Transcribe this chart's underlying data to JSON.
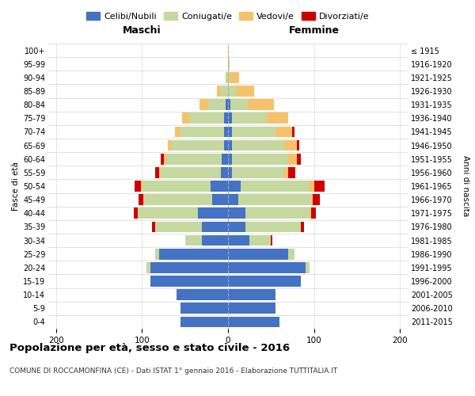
{
  "age_groups": [
    "0-4",
    "5-9",
    "10-14",
    "15-19",
    "20-24",
    "25-29",
    "30-34",
    "35-39",
    "40-44",
    "45-49",
    "50-54",
    "55-59",
    "60-64",
    "65-69",
    "70-74",
    "75-79",
    "80-84",
    "85-89",
    "90-94",
    "95-99",
    "100+"
  ],
  "birth_years": [
    "2011-2015",
    "2006-2010",
    "2001-2005",
    "1996-2000",
    "1991-1995",
    "1986-1990",
    "1981-1985",
    "1976-1980",
    "1971-1975",
    "1966-1970",
    "1961-1965",
    "1956-1960",
    "1951-1955",
    "1946-1950",
    "1941-1945",
    "1936-1940",
    "1931-1935",
    "1926-1930",
    "1921-1925",
    "1916-1920",
    "≤ 1915"
  ],
  "maschi": {
    "celibi": [
      55,
      55,
      60,
      90,
      90,
      80,
      30,
      30,
      35,
      18,
      20,
      8,
      7,
      5,
      5,
      5,
      3,
      0,
      0,
      0,
      0
    ],
    "coniugati": [
      0,
      0,
      0,
      0,
      5,
      5,
      20,
      55,
      70,
      80,
      80,
      70,
      65,
      60,
      50,
      40,
      20,
      8,
      2,
      0,
      0
    ],
    "vedovi": [
      0,
      0,
      0,
      0,
      0,
      0,
      0,
      0,
      0,
      1,
      1,
      2,
      3,
      5,
      7,
      8,
      10,
      5,
      1,
      0,
      0
    ],
    "divorziati": [
      0,
      0,
      0,
      0,
      0,
      0,
      0,
      3,
      5,
      5,
      8,
      5,
      3,
      0,
      0,
      0,
      0,
      0,
      0,
      0,
      0
    ]
  },
  "femmine": {
    "nubili": [
      60,
      55,
      55,
      85,
      90,
      70,
      25,
      20,
      20,
      12,
      15,
      5,
      5,
      5,
      5,
      5,
      3,
      0,
      0,
      0,
      0
    ],
    "coniugate": [
      0,
      0,
      0,
      0,
      5,
      7,
      25,
      65,
      75,
      85,
      80,
      60,
      65,
      60,
      50,
      40,
      20,
      10,
      3,
      0,
      0
    ],
    "vedove": [
      0,
      0,
      0,
      0,
      0,
      0,
      0,
      0,
      2,
      2,
      5,
      5,
      10,
      15,
      20,
      25,
      30,
      20,
      10,
      2,
      1
    ],
    "divorziate": [
      0,
      0,
      0,
      0,
      0,
      0,
      2,
      3,
      5,
      8,
      12,
      8,
      5,
      3,
      2,
      0,
      0,
      0,
      0,
      0,
      0
    ]
  },
  "colors": {
    "celibi": "#4472c4",
    "coniugati": "#c5d8a0",
    "vedovi": "#f5c26b",
    "divorziati": "#cc0000"
  },
  "xlim": [
    -210,
    210
  ],
  "xticks": [
    -200,
    -100,
    0,
    100,
    200
  ],
  "xticklabels": [
    "200",
    "100",
    "0",
    "100",
    "200"
  ],
  "title": "Popolazione per età, sesso e stato civile - 2016",
  "subtitle": "COMUNE DI ROCCAMONFINA (CE) - Dati ISTAT 1° gennaio 2016 - Elaborazione TUTTITALIA.IT",
  "ylabel_left": "Fasce di età",
  "ylabel_right": "Anni di nascita",
  "header_left": "Maschi",
  "header_right": "Femmine",
  "legend_labels": [
    "Celibi/Nubili",
    "Coniugati/e",
    "Vedovi/e",
    "Divorziati/e"
  ],
  "bg_color": "#ffffff",
  "grid_color": "#cccccc"
}
